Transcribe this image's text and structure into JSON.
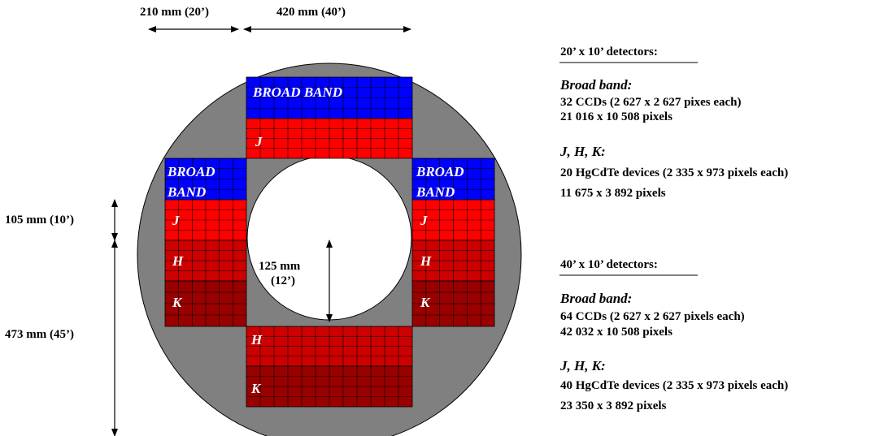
{
  "dimensions": {
    "top_left": "210 mm (20’)",
    "top_right": "420 mm (40’)",
    "left_upper": "105 mm (10’)",
    "left_lower": "473 mm (45’)",
    "inner": "125 mm",
    "inner_angle": "(12’)"
  },
  "blocks": {
    "top_broad_band": "BROAD BAND",
    "top_j": "J",
    "left_broad": "BROAD",
    "left_band": "BAND",
    "left_j": "J",
    "left_h": "H",
    "left_k": "K",
    "right_broad": "BROAD",
    "right_band": "BAND",
    "right_j": "J",
    "right_h": "H",
    "right_k": "K",
    "bottom_h": "H",
    "bottom_k": "K"
  },
  "panel20": {
    "header": "20’ x 10’ detectors:",
    "broad_title": "Broad band:",
    "broad_line1": "32 CCDs (2 627 x 2 627 pixes each)",
    "broad_line2": "21 016 x 10 508 pixels",
    "jhk_title": "J, H, K:",
    "jhk_line1": "20 HgCdTe devices (2 335 x 973 pixels each)",
    "jhk_line2": "11 675 x 3 892 pixels"
  },
  "panel40": {
    "header": "40’ x 10’ detectors:",
    "broad_title": "Broad band:",
    "broad_line1": "64 CCDs (2 627 x 2 627 pixels each)",
    "broad_line2": "42 032 x 10 508 pixels",
    "jhk_title": "J, H, K:",
    "jhk_line1": "40 HgCdTe devices (2 335 x 973 pixels each)",
    "jhk_line2": "23 350 x 3 892 pixels"
  },
  "colors": {
    "ring": "#808080",
    "broad_band": "#0000ff",
    "j_band": "#ff0000",
    "h_band": "#cc0000",
    "k_band": "#990000",
    "grid_line": "#000000"
  }
}
